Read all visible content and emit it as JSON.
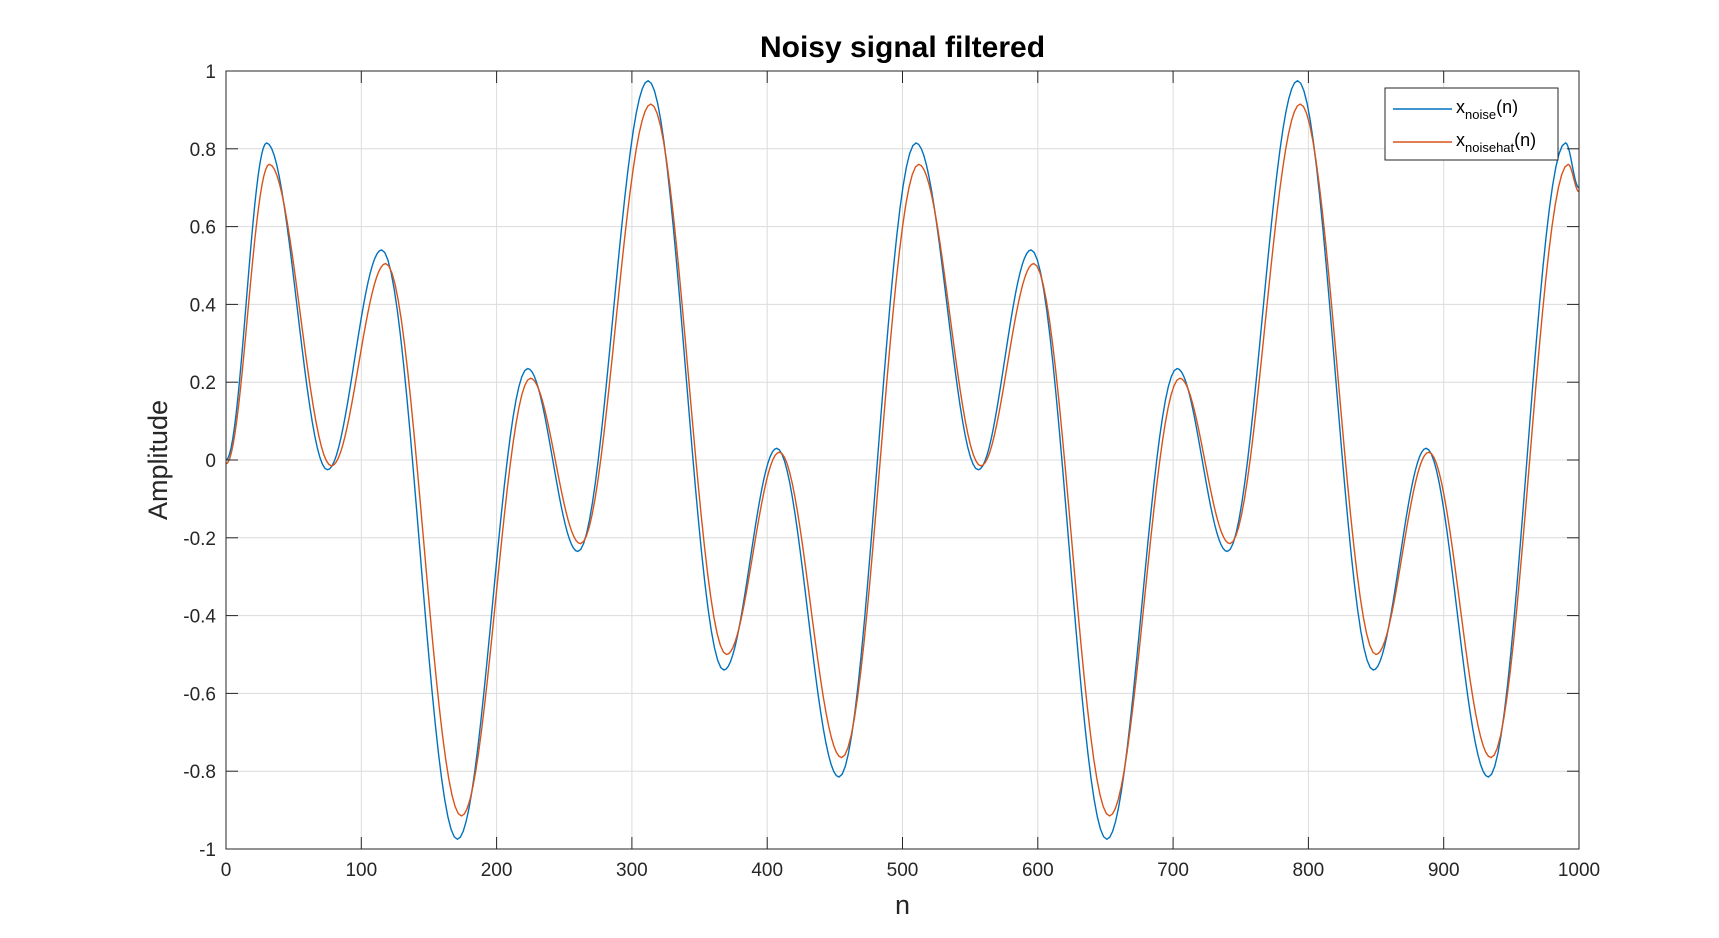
{
  "chart_data": {
    "type": "line",
    "title": "Noisy signal filtered",
    "xlabel": "n",
    "ylabel": "Amplitude",
    "xlim": [
      0,
      1000
    ],
    "ylim": [
      -1,
      1
    ],
    "xticks": [
      0,
      100,
      200,
      300,
      400,
      500,
      600,
      700,
      800,
      900,
      1000
    ],
    "yticks": [
      -1,
      -0.8,
      -0.6,
      -0.4,
      -0.2,
      0,
      0.2,
      0.4,
      0.6,
      0.8,
      1
    ],
    "xtick_labels": [
      "0",
      "100",
      "200",
      "300",
      "400",
      "500",
      "600",
      "700",
      "800",
      "900",
      "1000"
    ],
    "ytick_labels": [
      "-1",
      "-0.8",
      "-0.6",
      "-0.4",
      "-0.2",
      "0",
      "0.2",
      "0.4",
      "0.6",
      "0.8",
      "1"
    ],
    "grid": true,
    "legend_position": "top-right",
    "series": [
      {
        "name": "x_noise(n)",
        "name_base": "x",
        "name_sub": "noise",
        "name_suffix": "(n)",
        "color": "#0072BD",
        "x": [
          0,
          30,
          75,
          115,
          171,
          223,
          260,
          312,
          368,
          407,
          453,
          510,
          556,
          595,
          651,
          703,
          740,
          792,
          848,
          887,
          933,
          990,
          1000
        ],
        "y": [
          0,
          0.815,
          -0.025,
          0.54,
          -0.975,
          0.235,
          -0.235,
          0.975,
          -0.54,
          0.03,
          -0.815,
          0.815,
          -0.025,
          0.54,
          -0.975,
          0.235,
          -0.235,
          0.975,
          -0.54,
          0.03,
          -0.815,
          0.815,
          0.7
        ]
      },
      {
        "name": "x_noisehat(n)",
        "name_base": "x",
        "name_sub": "noisehat",
        "name_suffix": "(n)",
        "color": "#D95319",
        "x": [
          0,
          32,
          78,
          118,
          174,
          225,
          262,
          314,
          370,
          409,
          455,
          512,
          558,
          597,
          653,
          705,
          742,
          794,
          850,
          889,
          935,
          992,
          1000
        ],
        "y": [
          -0.01,
          0.76,
          -0.015,
          0.505,
          -0.915,
          0.21,
          -0.215,
          0.915,
          -0.5,
          0.02,
          -0.765,
          0.76,
          -0.015,
          0.505,
          -0.915,
          0.21,
          -0.215,
          0.915,
          -0.5,
          0.02,
          -0.765,
          0.76,
          0.69
        ]
      }
    ]
  }
}
